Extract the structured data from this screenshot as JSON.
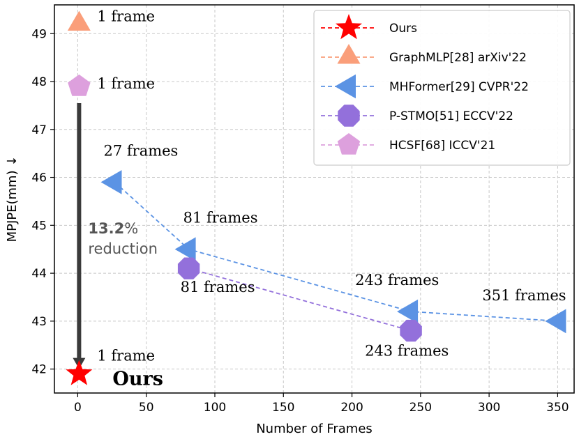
{
  "chart_data": {
    "type": "scatter",
    "xlabel": "Number of Frames",
    "ylabel": "MPJPE(mm) ↓",
    "xlim": [
      -17,
      362
    ],
    "ylim": [
      41.5,
      49.6
    ],
    "xticks": [
      0,
      50,
      100,
      150,
      200,
      250,
      300,
      350
    ],
    "yticks": [
      42,
      43,
      44,
      45,
      46,
      47,
      48,
      49
    ],
    "grid": true,
    "legend_position": "top-right",
    "series": [
      {
        "name": "Ours",
        "marker": "star",
        "color": "#ff0000",
        "linestyle": "dashed",
        "points": [
          {
            "x": 1,
            "y": 41.9,
            "label": "Ours"
          }
        ]
      },
      {
        "name": "GraphMLP[28] arXiv'22",
        "marker": "triangle-up",
        "color": "#fa9e7a",
        "linestyle": "dashed",
        "points": [
          {
            "x": 1,
            "y": 49.2,
            "label": "1 frame"
          }
        ]
      },
      {
        "name": "MHFormer[29] CVPR'22",
        "marker": "triangle-left",
        "color": "#5b93e4",
        "linestyle": "dashed",
        "points": [
          {
            "x": 27,
            "y": 45.9,
            "label": "27 frames"
          },
          {
            "x": 81,
            "y": 44.5,
            "label": "81 frames"
          },
          {
            "x": 243,
            "y": 43.2,
            "label": "243 frames"
          },
          {
            "x": 351,
            "y": 43.0,
            "label": "351 frames"
          }
        ]
      },
      {
        "name": "P-STMO[51] ECCV'22",
        "marker": "octagon",
        "color": "#9370db",
        "linestyle": "dashed",
        "points": [
          {
            "x": 81,
            "y": 44.1,
            "label": "81 frames"
          },
          {
            "x": 243,
            "y": 42.8,
            "label": "243 frames"
          }
        ]
      },
      {
        "name": "HCSF[68] ICCV'21",
        "marker": "pentagon",
        "color": "#dda0dd",
        "linestyle": "dashed",
        "points": [
          {
            "x": 1,
            "y": 47.9,
            "label": "1 frame"
          }
        ]
      }
    ],
    "annotations": {
      "arrow_from": {
        "x": 1,
        "y": 47.55
      },
      "arrow_to": {
        "x": 1,
        "y": 42.0
      },
      "arrow_color": "#3a3a3a",
      "arrow_label": "1 frame",
      "reduction_value": "13.2",
      "reduction_suffix": "%",
      "reduction_word": "reduction"
    }
  }
}
